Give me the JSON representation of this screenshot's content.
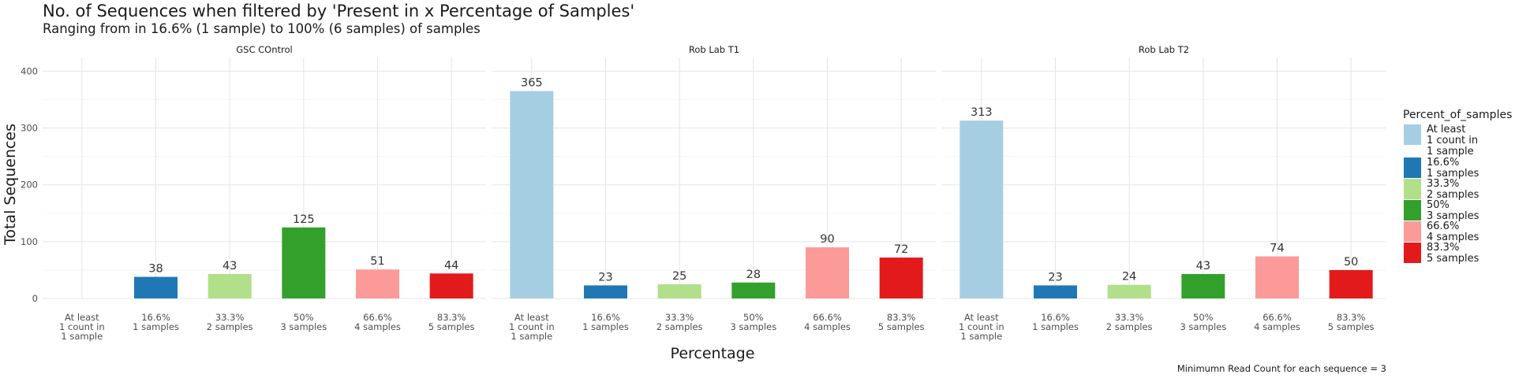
{
  "chart_data": {
    "type": "bar",
    "title": "No. of Sequences when filtered by 'Present in x Percentage of Samples'",
    "subtitle": "Ranging from in 16.6% (1 sample) to 100% (6 samples) of samples",
    "xlabel": "Percentage",
    "ylabel": "Total Sequences",
    "caption": "Minimumn Read Count for each sequence = 3",
    "ylim": [
      0,
      410
    ],
    "yticks": [
      0,
      100,
      200,
      300,
      400
    ],
    "grid": true,
    "legend_position": "right",
    "legend_title": "Percent_of_samples",
    "categories": [
      [
        "At least",
        "1 count in",
        "1 sample"
      ],
      [
        "16.6%",
        "1 samples"
      ],
      [
        "33.3%",
        "2 samples"
      ],
      [
        "50%",
        "3 samples"
      ],
      [
        "66.6%",
        "4 samples"
      ],
      [
        "83.3%",
        "5 samples"
      ]
    ],
    "colors": [
      "#a6cee3",
      "#1f78b4",
      "#b2df8a",
      "#33a02c",
      "#fb9a99",
      "#e31a1c"
    ],
    "panels": [
      {
        "name": "GSC COntrol",
        "values": [
          null,
          38,
          43,
          125,
          51,
          44
        ]
      },
      {
        "name": "Rob Lab T1",
        "values": [
          365,
          23,
          25,
          28,
          90,
          72
        ]
      },
      {
        "name": "Rob Lab T2",
        "values": [
          313,
          23,
          24,
          43,
          74,
          50
        ]
      }
    ]
  }
}
